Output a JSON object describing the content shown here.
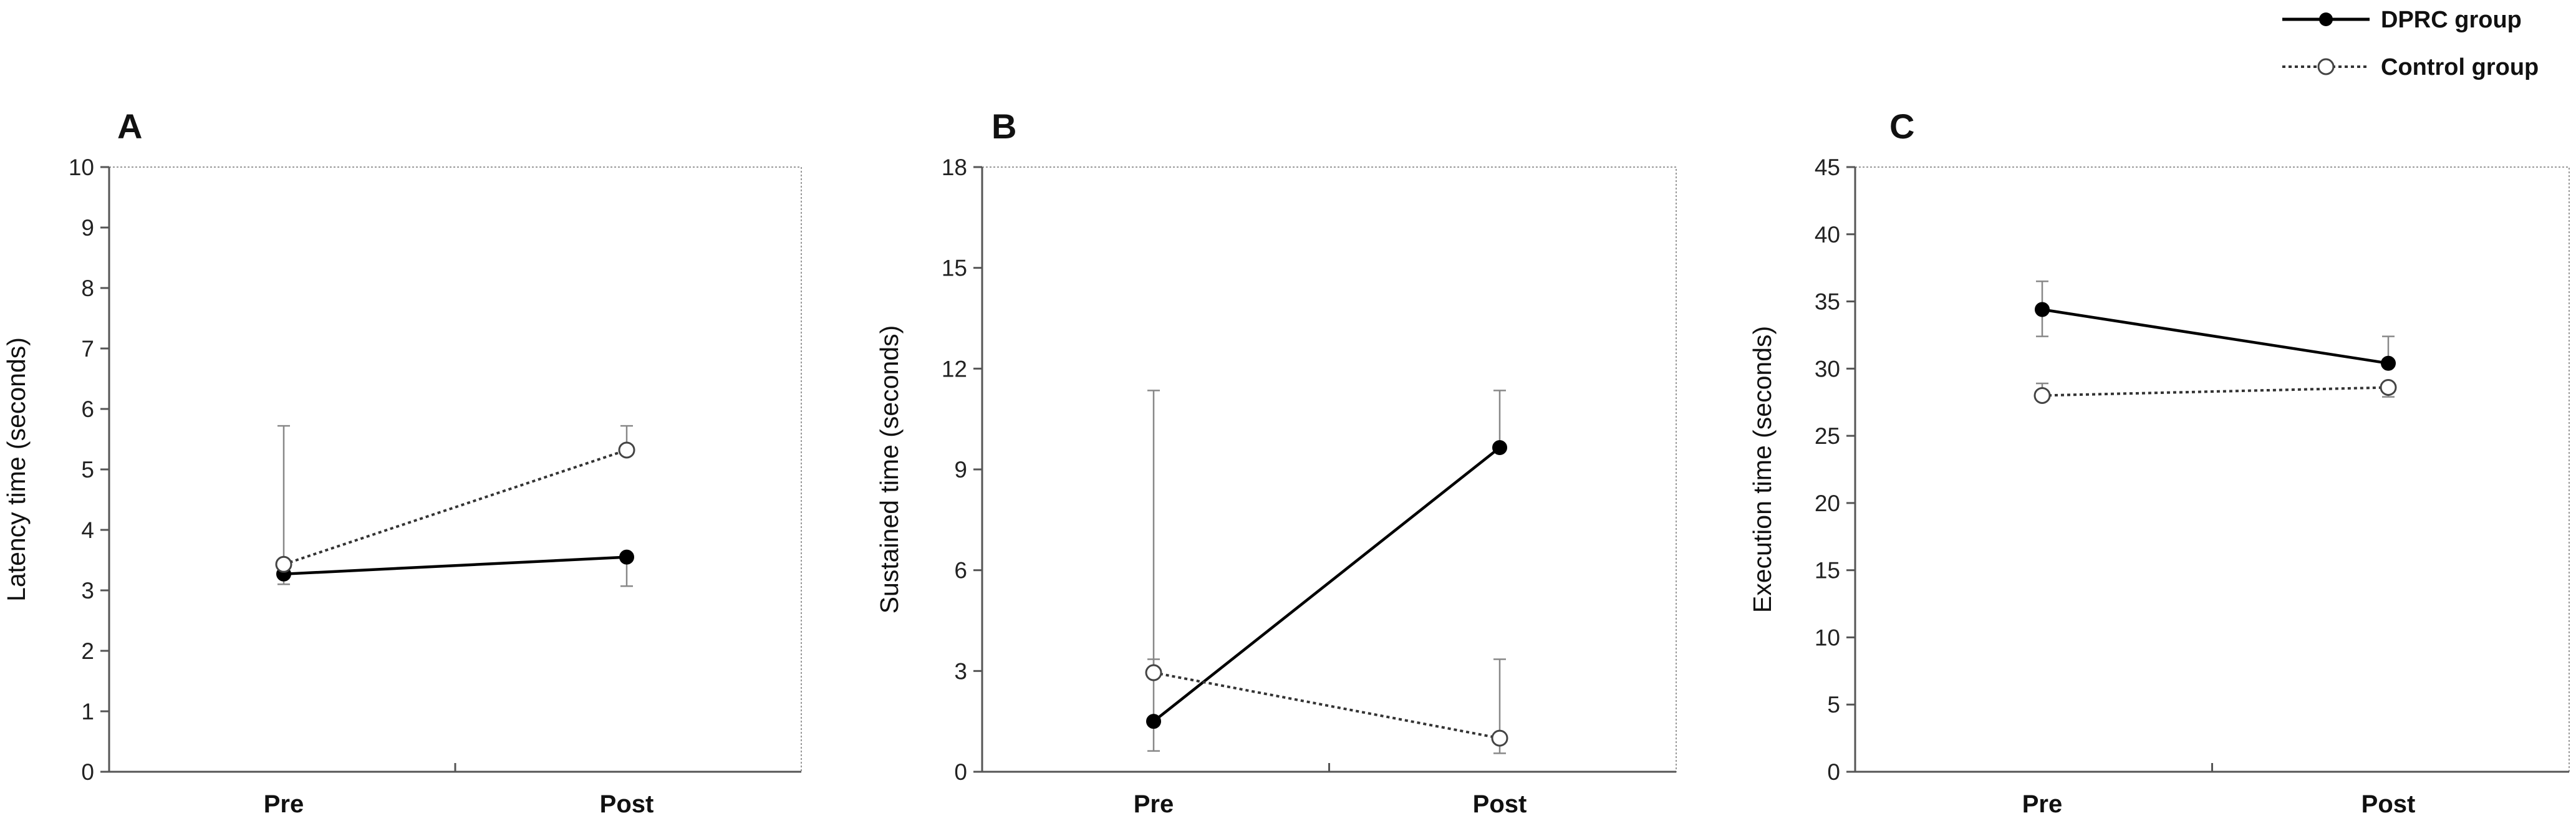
{
  "legend": {
    "dprc_label": "DPRC group",
    "control_label": "Control group"
  },
  "chart_data": [
    {
      "type": "line",
      "panel": "A",
      "xlabel": "",
      "ylabel": "Latency time (seconds)",
      "categories": [
        "Pre",
        "Post"
      ],
      "ylim": [
        0,
        10
      ],
      "yticks": [
        0,
        1,
        2,
        3,
        4,
        5,
        6,
        7,
        8,
        9,
        10
      ],
      "series": [
        {
          "name": "DPRC group",
          "style": "solid-filled",
          "values": [
            3.27,
            3.55
          ],
          "err_lo": [
            3.1,
            3.07
          ],
          "err_hi": [
            3.27,
            3.55
          ]
        },
        {
          "name": "Control group",
          "style": "dotted-open",
          "values": [
            3.43,
            5.32
          ],
          "err_lo": [
            3.43,
            5.32
          ],
          "err_hi": [
            5.72,
            5.72
          ]
        }
      ]
    },
    {
      "type": "line",
      "panel": "B",
      "xlabel": "",
      "ylabel": "Sustained time (seconds)",
      "categories": [
        "Pre",
        "Post"
      ],
      "ylim": [
        0,
        18
      ],
      "yticks": [
        0,
        3,
        6,
        9,
        12,
        15,
        18
      ],
      "series": [
        {
          "name": "DPRC group",
          "style": "solid-filled",
          "values": [
            1.5,
            9.65
          ],
          "err_lo": [
            0.62,
            9.65
          ],
          "err_hi": [
            11.35,
            11.35
          ]
        },
        {
          "name": "Control group",
          "style": "dotted-open",
          "values": [
            2.95,
            1.0
          ],
          "err_lo": [
            2.95,
            0.55
          ],
          "err_hi": [
            3.35,
            3.35
          ]
        }
      ]
    },
    {
      "type": "line",
      "panel": "C",
      "xlabel": "",
      "ylabel": "Execution time (seconds)",
      "categories": [
        "Pre",
        "Post"
      ],
      "ylim": [
        0,
        45
      ],
      "yticks": [
        0,
        5,
        10,
        15,
        20,
        25,
        30,
        35,
        40,
        45
      ],
      "series": [
        {
          "name": "DPRC group",
          "style": "solid-filled",
          "values": [
            34.4,
            30.4
          ],
          "err_lo": [
            32.4,
            30.4
          ],
          "err_hi": [
            36.5,
            32.4
          ]
        },
        {
          "name": "Control group",
          "style": "dotted-open",
          "values": [
            28.0,
            28.6
          ],
          "err_lo": [
            28.0,
            27.9
          ],
          "err_hi": [
            28.9,
            28.6
          ]
        }
      ]
    }
  ]
}
